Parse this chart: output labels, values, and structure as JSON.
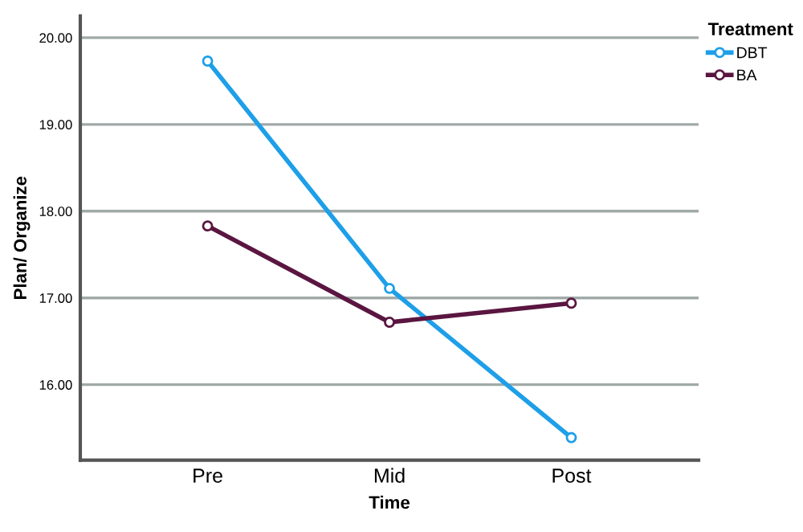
{
  "chart_data": {
    "type": "line",
    "xlabel": "Time",
    "ylabel": "Plan/ Organize",
    "legend_title": "Treatment",
    "categories": [
      "Pre",
      "Mid",
      "Post"
    ],
    "series": [
      {
        "name": "DBT",
        "color": "#1e9fe8",
        "values": [
          19.73,
          17.11,
          15.39
        ]
      },
      {
        "name": "BA",
        "color": "#5a1640",
        "values": [
          17.83,
          16.72,
          16.94
        ]
      }
    ],
    "ylim": [
      15.13,
      20.25
    ],
    "yticks": [
      {
        "value": 16,
        "label": "16.00"
      },
      {
        "value": 17,
        "label": "17.00"
      },
      {
        "value": 18,
        "label": "18.00"
      },
      {
        "value": 19,
        "label": "19.00"
      },
      {
        "value": 20,
        "label": "20.00"
      }
    ],
    "grid": "y",
    "legend": "top right",
    "marker": "circle"
  }
}
